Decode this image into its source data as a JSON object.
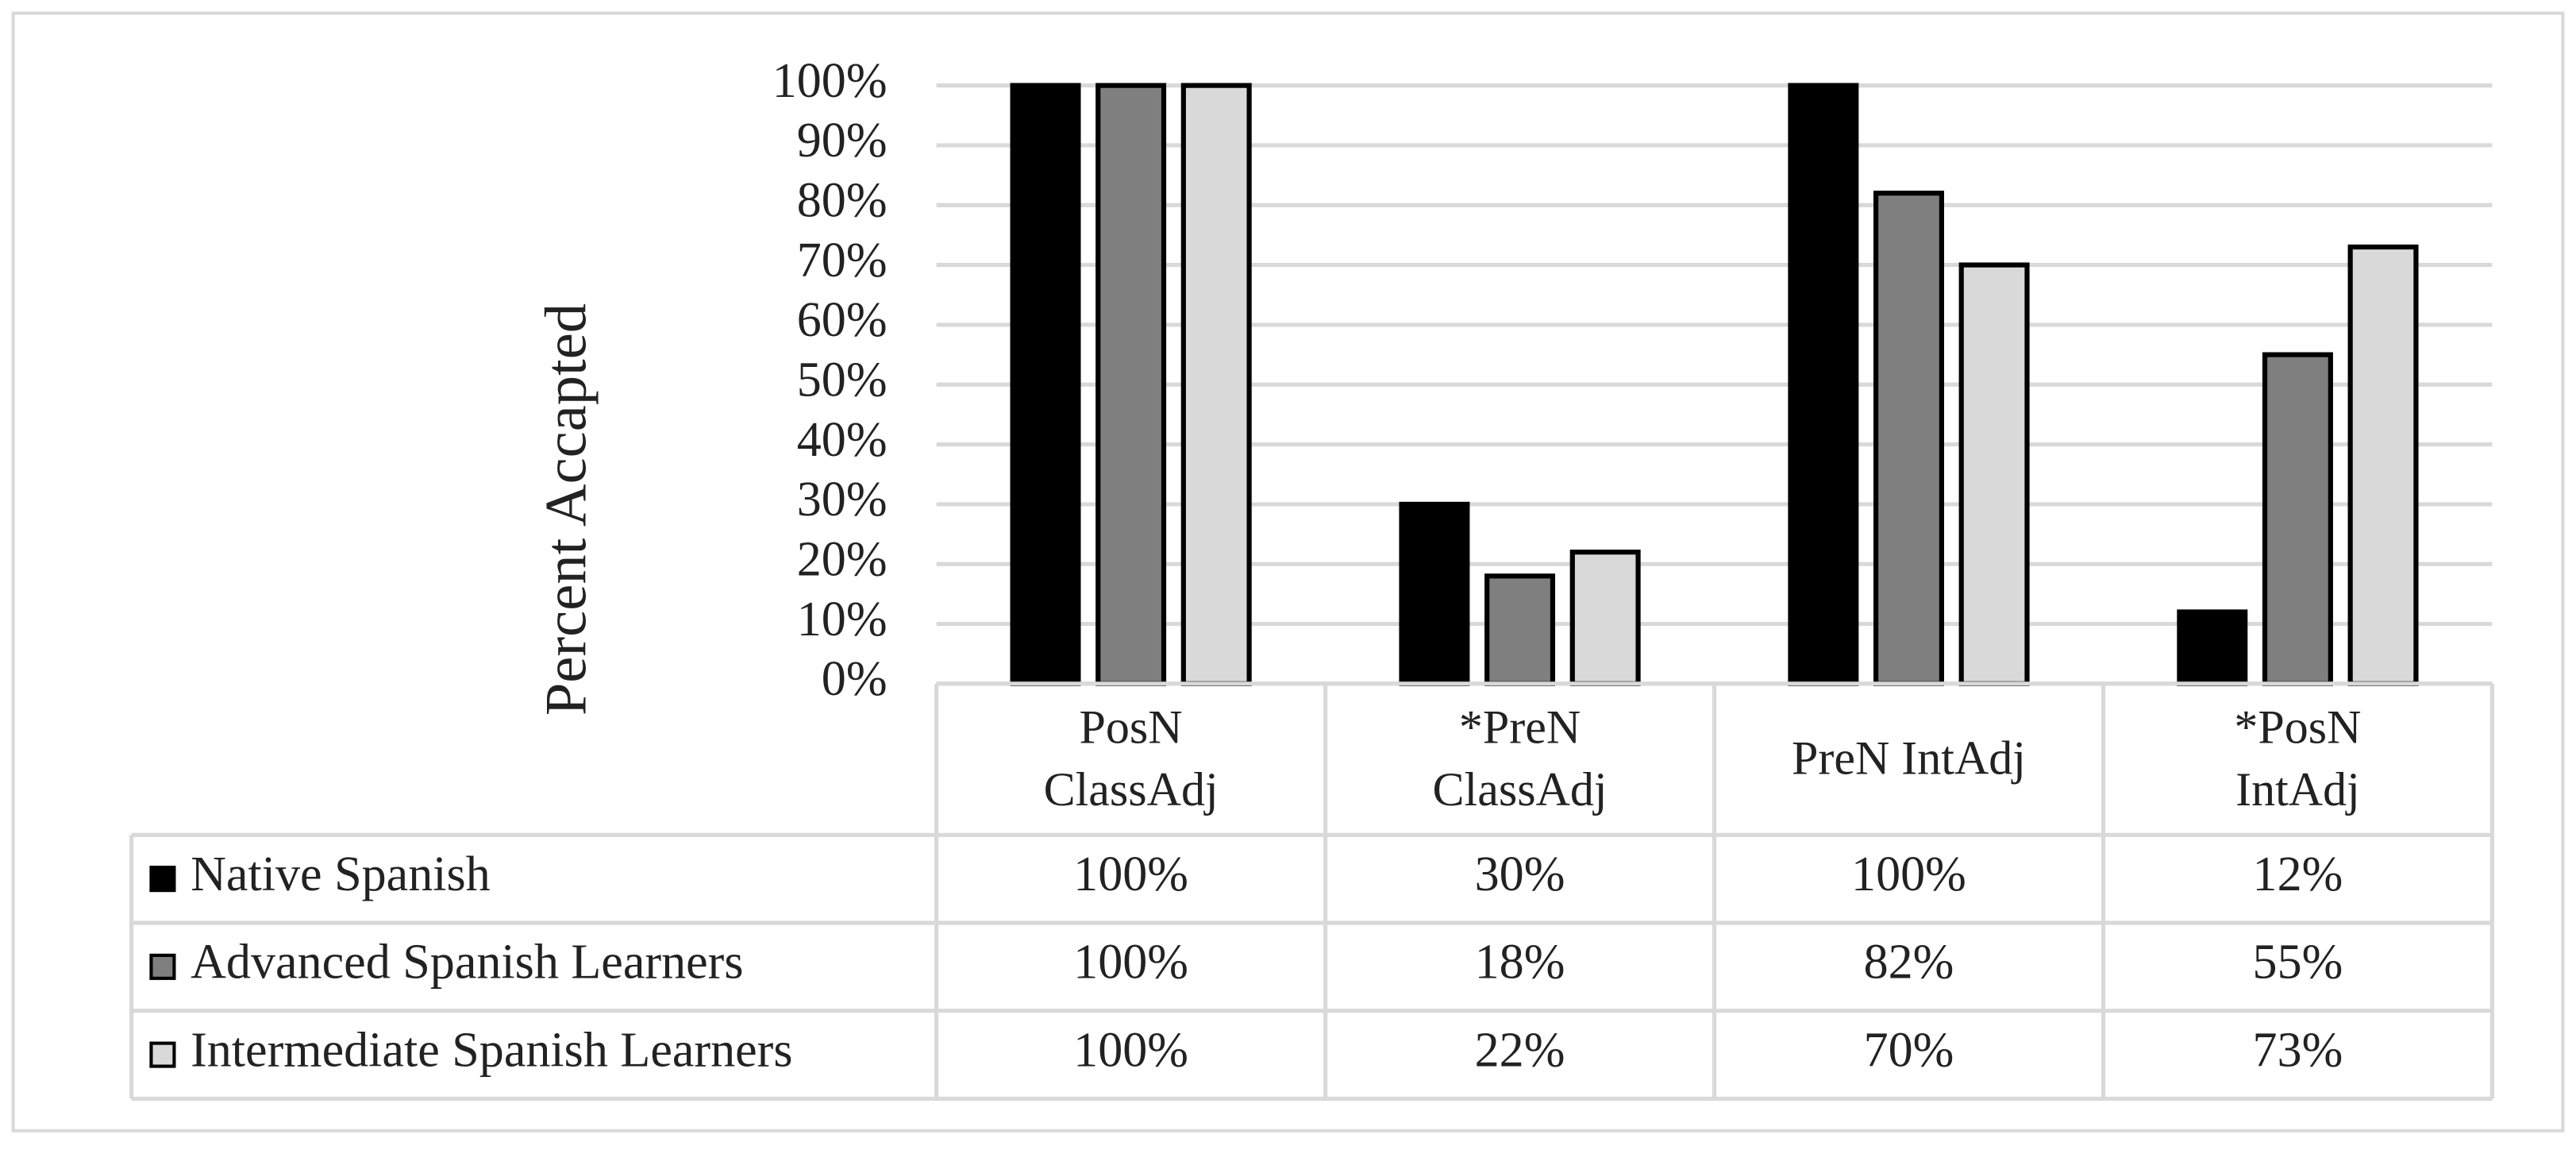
{
  "chart_data": {
    "type": "bar",
    "y_label": "Percent Accapted",
    "categories": [
      "PosN ClassAdj",
      "*PreN ClassAdj",
      "PreN IntAdj",
      "*PosN IntAdj"
    ],
    "series": [
      {
        "name": "Native Spanish",
        "color": "#000000",
        "values": [
          100,
          30,
          100,
          12
        ],
        "value_labels": [
          "100%",
          "30%",
          "100%",
          "12%"
        ]
      },
      {
        "name": "Advanced Spanish Learners",
        "color": "#7f7f7f",
        "values": [
          100,
          18,
          82,
          55
        ],
        "value_labels": [
          "100%",
          "18%",
          "82%",
          "55%"
        ]
      },
      {
        "name": "Intermediate Spanish Learners",
        "color": "#d9d9d9",
        "values": [
          100,
          22,
          70,
          73
        ],
        "value_labels": [
          "100%",
          "22%",
          "70%",
          "73%"
        ]
      }
    ],
    "ylim": [
      0,
      100
    ],
    "yticks": [
      {
        "value": 0,
        "label": "0%"
      },
      {
        "value": 10,
        "label": "10%"
      },
      {
        "value": 20,
        "label": "20%"
      },
      {
        "value": 30,
        "label": "30%"
      },
      {
        "value": 40,
        "label": "40%"
      },
      {
        "value": 50,
        "label": "50%"
      },
      {
        "value": 60,
        "label": "60%"
      },
      {
        "value": 70,
        "label": "70%"
      },
      {
        "value": 80,
        "label": "80%"
      },
      {
        "value": 90,
        "label": "90%"
      },
      {
        "value": 100,
        "label": "100%"
      }
    ],
    "grid": true,
    "data_table": true
  }
}
